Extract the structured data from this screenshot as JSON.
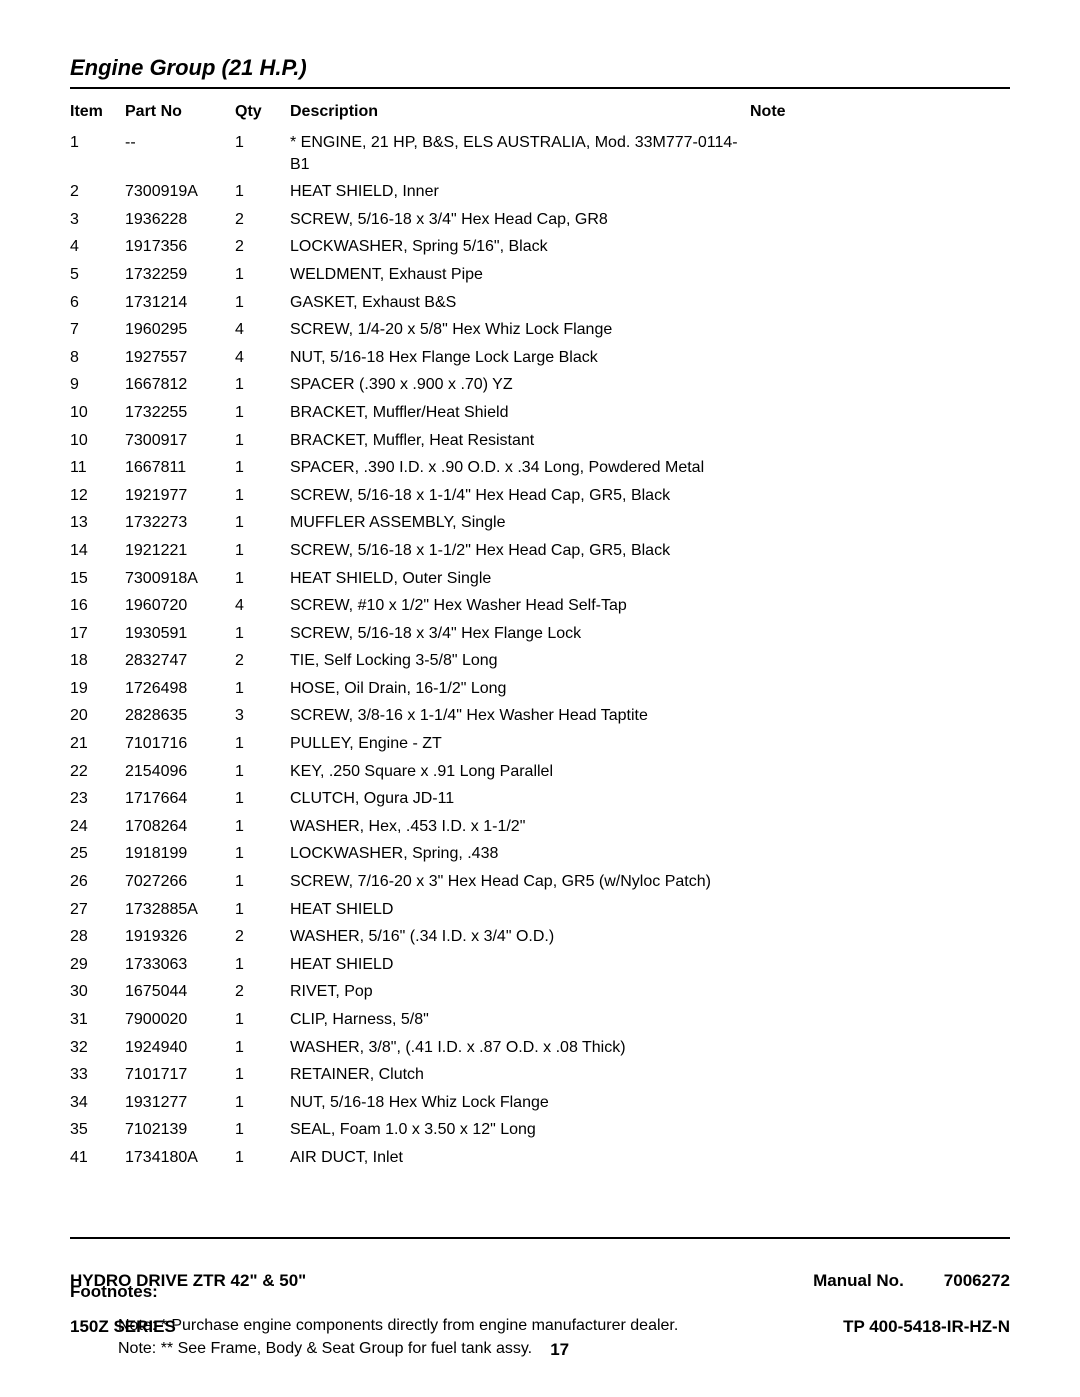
{
  "section_title": "Engine Group (21 H.P.)",
  "columns": [
    "Item",
    "Part No",
    "Qty",
    "Description",
    "Note"
  ],
  "rows": [
    {
      "item": "1",
      "part": "--",
      "qty": "1",
      "desc": "* ENGINE, 21 HP, B&S, ELS AUSTRALIA, Mod. 33M777-0114-B1",
      "note": ""
    },
    {
      "item": "2",
      "part": "7300919A",
      "qty": "1",
      "desc": "HEAT SHIELD, Inner",
      "note": ""
    },
    {
      "item": "3",
      "part": "1936228",
      "qty": "2",
      "desc": "SCREW, 5/16-18 x 3/4\" Hex Head Cap, GR8",
      "note": ""
    },
    {
      "item": "4",
      "part": "1917356",
      "qty": "2",
      "desc": "LOCKWASHER, Spring 5/16\", Black",
      "note": ""
    },
    {
      "item": "5",
      "part": "1732259",
      "qty": "1",
      "desc": "WELDMENT, Exhaust Pipe",
      "note": ""
    },
    {
      "item": "6",
      "part": "1731214",
      "qty": "1",
      "desc": "GASKET, Exhaust B&S",
      "note": ""
    },
    {
      "item": "7",
      "part": "1960295",
      "qty": "4",
      "desc": "SCREW, 1/4-20 x 5/8\" Hex Whiz Lock Flange",
      "note": ""
    },
    {
      "item": "8",
      "part": "1927557",
      "qty": "4",
      "desc": "NUT, 5/16-18 Hex Flange Lock Large Black",
      "note": ""
    },
    {
      "item": "9",
      "part": "1667812",
      "qty": "1",
      "desc": "SPACER (.390 x .900 x .70) YZ",
      "note": ""
    },
    {
      "item": "10",
      "part": "1732255",
      "qty": "1",
      "desc": "BRACKET, Muffler/Heat Shield",
      "note": ""
    },
    {
      "item": "10",
      "part": "7300917",
      "qty": "1",
      "desc": "BRACKET, Muffler, Heat Resistant",
      "note": ""
    },
    {
      "item": "11",
      "part": "1667811",
      "qty": "1",
      "desc": "SPACER, .390 I.D. x .90 O.D. x .34 Long, Powdered Metal",
      "note": ""
    },
    {
      "item": "12",
      "part": "1921977",
      "qty": "1",
      "desc": "SCREW, 5/16-18 x 1-1/4\" Hex Head Cap, GR5, Black",
      "note": ""
    },
    {
      "item": "13",
      "part": "1732273",
      "qty": "1",
      "desc": "MUFFLER ASSEMBLY, Single",
      "note": ""
    },
    {
      "item": "14",
      "part": "1921221",
      "qty": "1",
      "desc": "SCREW, 5/16-18 x 1-1/2\" Hex Head Cap, GR5, Black",
      "note": ""
    },
    {
      "item": "15",
      "part": "7300918A",
      "qty": "1",
      "desc": "HEAT SHIELD, Outer Single",
      "note": ""
    },
    {
      "item": "16",
      "part": "1960720",
      "qty": "4",
      "desc": "SCREW, #10 x 1/2\" Hex Washer Head Self-Tap",
      "note": ""
    },
    {
      "item": "17",
      "part": "1930591",
      "qty": "1",
      "desc": "SCREW, 5/16-18 x 3/4\" Hex Flange Lock",
      "note": ""
    },
    {
      "item": "18",
      "part": "2832747",
      "qty": "2",
      "desc": "TIE, Self Locking 3-5/8\" Long",
      "note": ""
    },
    {
      "item": "19",
      "part": "1726498",
      "qty": "1",
      "desc": "HOSE, Oil Drain, 16-1/2\" Long",
      "note": ""
    },
    {
      "item": "20",
      "part": "2828635",
      "qty": "3",
      "desc": "SCREW, 3/8-16 x 1-1/4\" Hex Washer Head Taptite",
      "note": ""
    },
    {
      "item": "21",
      "part": "7101716",
      "qty": "1",
      "desc": "PULLEY, Engine - ZT",
      "note": ""
    },
    {
      "item": "22",
      "part": "2154096",
      "qty": "1",
      "desc": "KEY, .250 Square x .91 Long Parallel",
      "note": ""
    },
    {
      "item": "23",
      "part": "1717664",
      "qty": "1",
      "desc": "CLUTCH, Ogura JD-11",
      "note": ""
    },
    {
      "item": "24",
      "part": "1708264",
      "qty": "1",
      "desc": "WASHER, Hex, .453 I.D. x 1-1/2\"",
      "note": ""
    },
    {
      "item": "25",
      "part": "1918199",
      "qty": "1",
      "desc": "LOCKWASHER, Spring, .438",
      "note": ""
    },
    {
      "item": "26",
      "part": "7027266",
      "qty": "1",
      "desc": "SCREW, 7/16-20 x 3\" Hex Head Cap, GR5 (w/Nyloc Patch)",
      "note": ""
    },
    {
      "item": "27",
      "part": "1732885A",
      "qty": "1",
      "desc": "HEAT SHIELD",
      "note": ""
    },
    {
      "item": "28",
      "part": "1919326",
      "qty": "2",
      "desc": "WASHER, 5/16\" (.34 I.D. x 3/4\" O.D.)",
      "note": ""
    },
    {
      "item": "29",
      "part": "1733063",
      "qty": "1",
      "desc": "HEAT SHIELD",
      "note": ""
    },
    {
      "item": "30",
      "part": "1675044",
      "qty": "2",
      "desc": "RIVET, Pop",
      "note": ""
    },
    {
      "item": "31",
      "part": "7900020",
      "qty": "1",
      "desc": "CLIP, Harness, 5/8\"",
      "note": ""
    },
    {
      "item": "32",
      "part": "1924940",
      "qty": "1",
      "desc": "WASHER, 3/8\", (.41 I.D. x .87 O.D. x .08 Thick)",
      "note": ""
    },
    {
      "item": "33",
      "part": "7101717",
      "qty": "1",
      "desc": "RETAINER, Clutch",
      "note": ""
    },
    {
      "item": "34",
      "part": "1931277",
      "qty": "1",
      "desc": "NUT, 5/16-18 Hex Whiz Lock Flange",
      "note": ""
    },
    {
      "item": "35",
      "part": "7102139",
      "qty": "1",
      "desc": "SEAL, Foam 1.0 x 3.50 x 12\" Long",
      "note": ""
    },
    {
      "item": "41",
      "part": "1734180A",
      "qty": "1",
      "desc": "AIR DUCT, Inlet",
      "note": ""
    }
  ],
  "footnotes_header": "Footnotes:",
  "footnotes": [
    "Note: * Purchase engine components directly from engine manufacturer dealer.",
    "Note: ** See Frame, Body & Seat Group for fuel tank assy."
  ],
  "footer": {
    "left_line1": "HYDRO DRIVE ZTR 42\" & 50\"",
    "left_line2": "150Z SERIES",
    "page_number": "17",
    "manual_label": "Manual No.",
    "manual_number": "7006272",
    "tp_number": "TP 400-5418-IR-HZ-N"
  }
}
